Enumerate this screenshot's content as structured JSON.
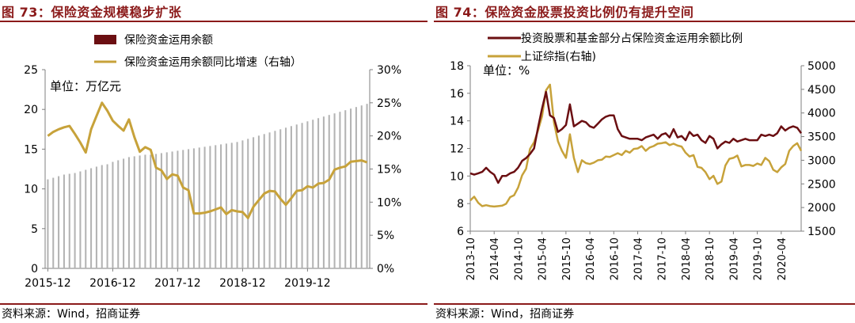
{
  "panels": [
    {
      "title": "图 73：保险资金规模稳步扩张",
      "source": "资料来源：Wind，招商证券",
      "chart_data": {
        "type": "bar",
        "unit_note": "单位：万亿元",
        "legend": [
          {
            "label": "保险资金运用余额",
            "kind": "bar",
            "color": "#6b0f12"
          },
          {
            "label": "保险资金运用余额同比增速（右轴）",
            "kind": "line",
            "color": "#c7a23a"
          }
        ],
        "left_axis": {
          "min": 0,
          "max": 25,
          "ticks": [
            0,
            5,
            10,
            15,
            20,
            25
          ]
        },
        "right_axis": {
          "min": 0,
          "max": 30,
          "ticks": [
            "0%",
            "5%",
            "10%",
            "15%",
            "20%",
            "25%",
            "30%"
          ]
        },
        "x_labels": [
          {
            "label": "2015-12",
            "index": 0
          },
          {
            "label": "2016-12",
            "index": 12
          },
          {
            "label": "2017-12",
            "index": 24
          },
          {
            "label": "2018-12",
            "index": 36
          },
          {
            "label": "2019-12",
            "index": 48
          }
        ],
        "series": [
          {
            "name": "保险资金运用余额",
            "values": [
              11.2,
              11.4,
              11.6,
              11.8,
              11.9,
              12.0,
              12.2,
              12.4,
              12.6,
              12.8,
              13.0,
              13.1,
              13.4,
              13.6,
              13.8,
              14.0,
              14.1,
              14.2,
              14.3,
              14.3,
              14.4,
              14.5,
              14.6,
              14.7,
              14.8,
              14.9,
              15.0,
              15.1,
              15.2,
              15.3,
              15.4,
              15.5,
              15.6,
              15.7,
              15.8,
              15.9,
              16.1,
              16.3,
              16.5,
              16.7,
              16.9,
              17.1,
              17.3,
              17.5,
              17.7,
              17.9,
              18.1,
              18.3,
              18.5,
              18.7,
              18.9,
              19.1,
              19.3,
              19.5,
              19.7,
              19.9,
              20.1,
              20.3,
              20.5,
              20.7
            ]
          },
          {
            "name": "保险资金运用余额同比增速（右轴）",
            "values": [
              20.0,
              20.6,
              21.0,
              21.3,
              21.5,
              20.3,
              19.0,
              17.5,
              21.0,
              23.0,
              25.0,
              23.8,
              22.3,
              21.5,
              20.8,
              22.5,
              19.8,
              17.6,
              18.3,
              17.9,
              15.2,
              14.8,
              13.5,
              14.2,
              14.0,
              12.2,
              11.8,
              8.3,
              8.3,
              8.4,
              8.6,
              8.9,
              9.2,
              8.2,
              8.8,
              8.6,
              8.5,
              7.6,
              9.3,
              10.3,
              11.3,
              11.7,
              11.6,
              10.5,
              9.6,
              10.6,
              11.7,
              11.8,
              12.4,
              12.2,
              12.8,
              12.9,
              13.4,
              14.9,
              15.2,
              15.4,
              16.1,
              16.2,
              16.3,
              16.0
            ]
          }
        ]
      }
    },
    {
      "title": "图 74：保险资金股票投资比例仍有提升空间",
      "source": "资料来源：Wind，招商证券",
      "chart_data": {
        "type": "line",
        "unit_note": "单位：%",
        "legend": [
          {
            "label": "投资股票和基金部分占保险资金运用余额比例",
            "color": "#6b0f12"
          },
          {
            "label": "上证综指(右轴)",
            "color": "#c7a23a"
          }
        ],
        "left_axis": {
          "min": 6,
          "max": 18,
          "ticks": [
            6,
            8,
            10,
            12,
            14,
            16,
            18
          ]
        },
        "right_axis": {
          "min": 1500,
          "max": 5000,
          "ticks": [
            1500,
            2000,
            2500,
            3000,
            3500,
            4000,
            4500,
            5000
          ]
        },
        "x_labels": [
          {
            "label": "2013-10",
            "index": 0
          },
          {
            "label": "2014-04",
            "index": 6
          },
          {
            "label": "2014-10",
            "index": 12
          },
          {
            "label": "2015-04",
            "index": 18
          },
          {
            "label": "2015-10",
            "index": 24
          },
          {
            "label": "2016-04",
            "index": 30
          },
          {
            "label": "2016-10",
            "index": 36
          },
          {
            "label": "2017-04",
            "index": 42
          },
          {
            "label": "2017-10",
            "index": 48
          },
          {
            "label": "2018-04",
            "index": 54
          },
          {
            "label": "2018-10",
            "index": 60
          },
          {
            "label": "2019-04",
            "index": 66
          },
          {
            "label": "2019-10",
            "index": 72
          },
          {
            "label": "2020-04",
            "index": 78
          }
        ],
        "series": [
          {
            "name": "投资股票和基金部分占保险资金运用余额比例",
            "values": [
              10.2,
              10.1,
              10.2,
              10.3,
              10.6,
              10.3,
              10.1,
              9.5,
              10.0,
              10.0,
              10.2,
              10.3,
              10.6,
              11.1,
              11.3,
              11.6,
              12.0,
              13.5,
              14.9,
              16.1,
              14.4,
              14.2,
              13.2,
              13.4,
              13.7,
              15.2,
              13.6,
              13.8,
              14.0,
              13.9,
              13.6,
              13.5,
              13.8,
              14.1,
              14.3,
              14.4,
              14.4,
              13.4,
              12.9,
              12.8,
              12.7,
              12.7,
              12.7,
              12.6,
              12.8,
              12.9,
              13.0,
              12.7,
              13.0,
              13.1,
              12.8,
              13.4,
              12.8,
              12.9,
              12.6,
              13.2,
              12.9,
              13.0,
              12.6,
              12.4,
              12.9,
              12.7,
              12.0,
              12.3,
              12.5,
              12.4,
              12.7,
              12.5,
              12.6,
              12.7,
              12.6,
              12.6,
              12.6,
              13.0,
              12.9,
              13.0,
              12.9,
              13.1,
              13.6,
              13.3,
              13.5,
              13.6,
              13.5,
              13.1
            ]
          },
          {
            "name": "上证综指(右轴)",
            "values": [
              2150,
              2230,
              2100,
              2030,
              2050,
              2030,
              2020,
              2030,
              2040,
              2080,
              2220,
              2260,
              2420,
              2680,
              2820,
              3240,
              3380,
              3630,
              3930,
              4480,
              4600,
              3800,
              3400,
              3200,
              3050,
              3550,
              3050,
              2750,
              3000,
              2940,
              2920,
              2950,
              3000,
              3010,
              3080,
              3070,
              3110,
              3150,
              3110,
              3200,
              3160,
              3240,
              3250,
              3300,
              3200,
              3270,
              3300,
              3350,
              3360,
              3380,
              3320,
              3350,
              3310,
              3290,
              3160,
              3080,
              3110,
              2860,
              2840,
              2750,
              2600,
              2670,
              2500,
              2550,
              2890,
              3030,
              3050,
              3100,
              2870,
              2900,
              2900,
              2880,
              2930,
              2900,
              3050,
              2980,
              2800,
              2750,
              2850,
              2920,
              3200,
              3300,
              3360,
              3200
            ]
          }
        ]
      }
    }
  ]
}
